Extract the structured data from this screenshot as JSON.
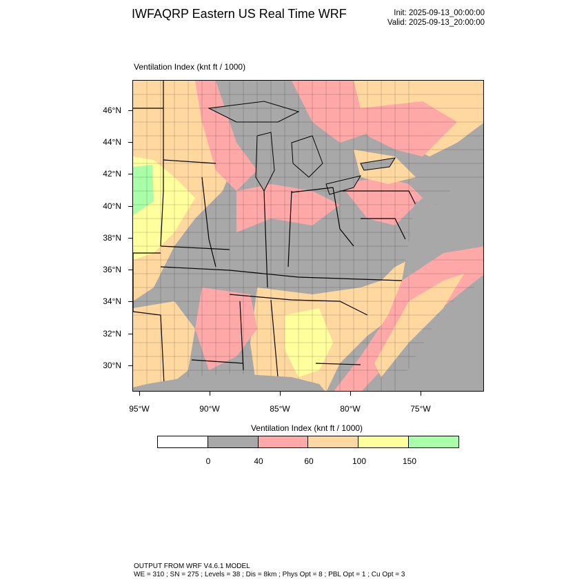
{
  "header": {
    "title": "IWFAQRP Eastern US Real Time WRF",
    "init": "Init: 2025-09-13_00:00:00",
    "valid": "Valid: 2025-09-13_20:00:00"
  },
  "plot": {
    "label": "Ventilation Index   (knt ft / 1000)",
    "lat_labels": [
      "46°N",
      "44°N",
      "42°N",
      "40°N",
      "38°N",
      "36°N",
      "34°N",
      "32°N",
      "30°N"
    ],
    "lon_labels": [
      "95°W",
      "90°W",
      "85°W",
      "80°W",
      "75°W"
    ]
  },
  "colorbar": {
    "title": "Ventilation Index   (knt ft / 1000)",
    "colors": [
      "#ffffff",
      "#a8a8a8",
      "#ffa8a8",
      "#ffd8a0",
      "#ffff9e",
      "#a8ffa8"
    ],
    "labels": [
      "0",
      "40",
      "60",
      "100",
      "150"
    ]
  },
  "footer": {
    "line1": "OUTPUT FROM WRF V4.6.1 MODEL",
    "line2": "WE = 310 ; SN = 275 ; Levels = 38 ; Dis = 8km ; Phys Opt = 8 ; PBL Opt = 1 ; Cu Opt = 3"
  }
}
